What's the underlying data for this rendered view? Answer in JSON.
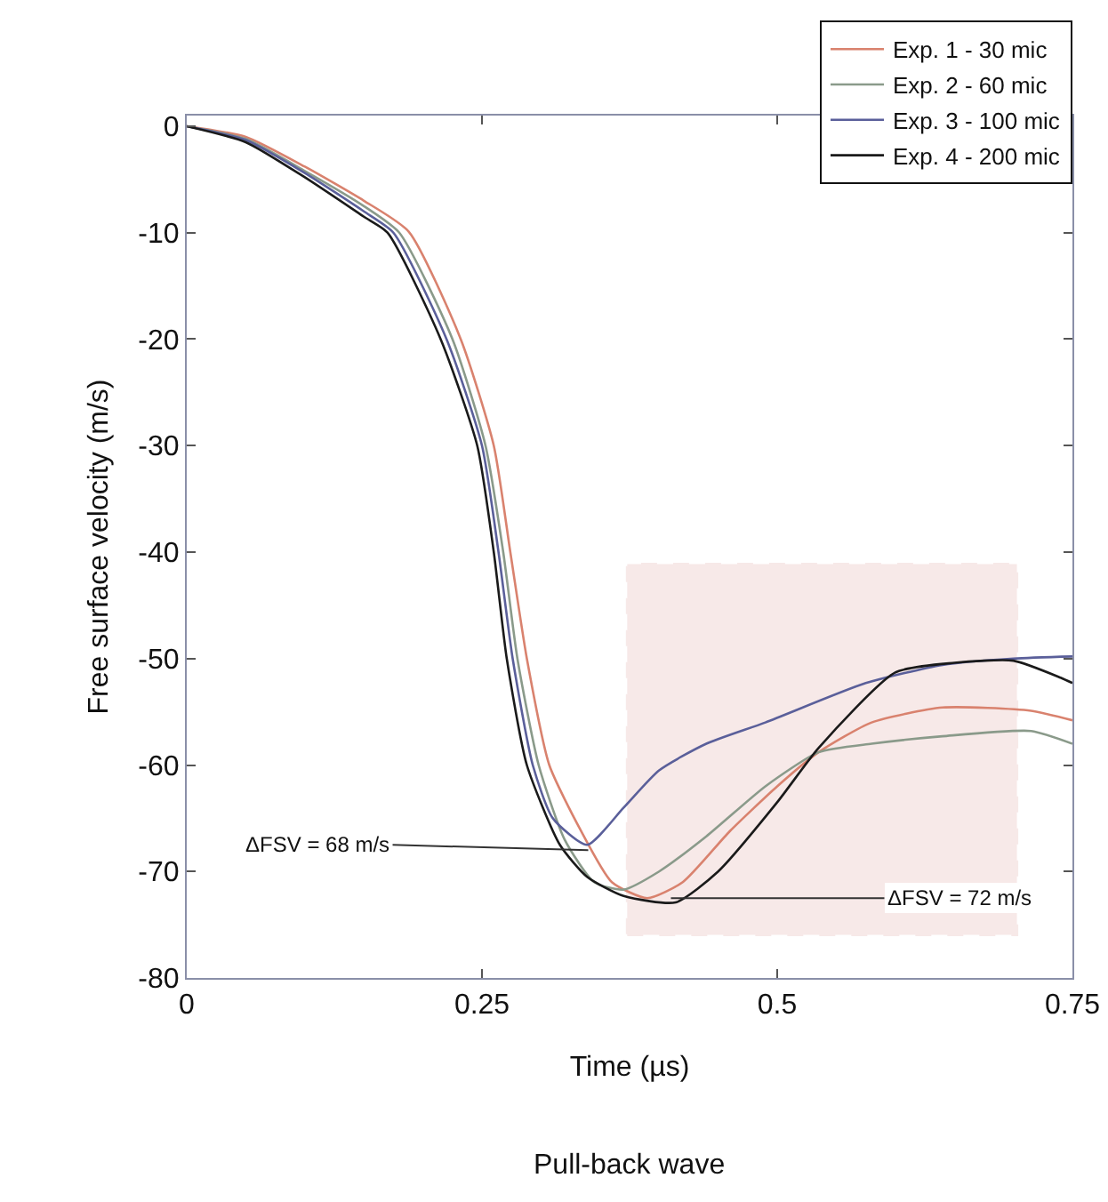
{
  "chart_data": {
    "type": "line",
    "title": "Pull-back wave",
    "xlabel": "Time (µs)",
    "ylabel": "Free surface velocity (m/s)",
    "xlim": [
      0,
      0.75
    ],
    "xticks": [
      0,
      0.25,
      0.5,
      0.75
    ],
    "ylim": [
      -80,
      1
    ],
    "yticks": [
      -80,
      -70,
      -60,
      -50,
      -40,
      -30,
      -20,
      -10,
      0
    ],
    "grid": false,
    "legend": "top right",
    "line_style": "solid",
    "marker": "none",
    "annotations": [
      {
        "text": "ΔFSV = 68 m/s",
        "x": 0.34,
        "y": -68
      },
      {
        "text": "ΔFSV = 72 m/s",
        "x": 0.41,
        "y": -72.5
      }
    ],
    "bands": [
      {
        "axis": "x",
        "from": 0.373,
        "to": 0.703,
        "color": "#c0504d"
      }
    ],
    "series": [
      {
        "name": "Exp. 1 - 30 mic",
        "color": "#d9826e",
        "x": [
          0,
          0.05,
          0.1,
          0.15,
          0.188,
          0.232,
          0.26,
          0.274,
          0.288,
          0.307,
          0.333,
          0.36,
          0.39,
          0.42,
          0.46,
          0.5,
          0.535,
          0.58,
          0.64,
          0.715,
          0.75
        ],
        "values": [
          0,
          -1,
          -3.8,
          -7,
          -9.9,
          -20,
          -30,
          -40,
          -50,
          -60,
          -66,
          -71,
          -72.5,
          -71,
          -66.2,
          -62,
          -58.8,
          -56,
          -54.6,
          -54.9,
          -55.8
        ]
      },
      {
        "name": "Exp. 2 - 60 mic",
        "color": "#8a9a8a",
        "x": [
          0,
          0.05,
          0.1,
          0.15,
          0.18,
          0.225,
          0.253,
          0.268,
          0.28,
          0.298,
          0.32,
          0.345,
          0.37,
          0.4,
          0.44,
          0.49,
          0.535,
          0.58,
          0.64,
          0.715,
          0.75
        ],
        "values": [
          0,
          -1.2,
          -4.2,
          -7.5,
          -10,
          -20,
          -30,
          -40,
          -50,
          -60,
          -67,
          -71,
          -71.7,
          -70,
          -66.7,
          -62,
          -58.8,
          -58,
          -57.3,
          -56.8,
          -58
        ]
      },
      {
        "name": "Exp. 3 - 100 mic",
        "color": "#5a5f9a",
        "x": [
          0,
          0.05,
          0.1,
          0.15,
          0.175,
          0.22,
          0.25,
          0.264,
          0.276,
          0.293,
          0.31,
          0.339,
          0.37,
          0.4,
          0.44,
          0.49,
          0.575,
          0.64,
          0.7,
          0.75
        ],
        "values": [
          0,
          -1.3,
          -4.4,
          -8,
          -10,
          -20,
          -30,
          -40,
          -50,
          -60,
          -65,
          -67.5,
          -64,
          -60.5,
          -58,
          -56,
          -52.3,
          -50.6,
          -50,
          -49.8
        ]
      },
      {
        "name": "Exp. 4 - 200 mic",
        "color": "#1a1a1a",
        "x": [
          0,
          0.05,
          0.1,
          0.15,
          0.17,
          0.215,
          0.246,
          0.26,
          0.271,
          0.288,
          0.316,
          0.339,
          0.37,
          0.414,
          0.45,
          0.5,
          0.535,
          0.6,
          0.65,
          0.7,
          0.74,
          0.75
        ],
        "values": [
          0,
          -1.5,
          -4.8,
          -8.5,
          -10,
          -20,
          -30,
          -40,
          -50,
          -60,
          -67.5,
          -70.5,
          -72.3,
          -72.9,
          -70,
          -63.5,
          -58.4,
          -51.3,
          -50.4,
          -50.2,
          -51.8,
          -52.3
        ]
      }
    ]
  }
}
